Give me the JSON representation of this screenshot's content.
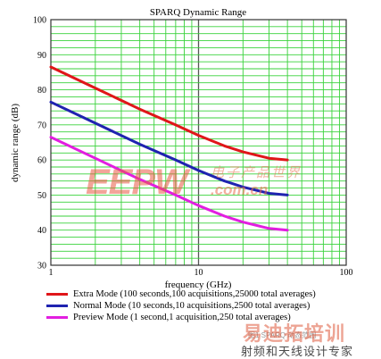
{
  "chart_data": {
    "type": "line",
    "title": "SPARQ Dynamic Range",
    "xlabel": "frequency (GHz)",
    "ylabel": "dynamic range (dB)",
    "xscale": "log",
    "xlim": [
      1,
      100
    ],
    "ylim": [
      30,
      100
    ],
    "grid": true,
    "legend_position": "bottom",
    "x_ticks": [
      {
        "value": 1,
        "label": "1"
      },
      {
        "value": 10,
        "label": "10"
      },
      {
        "value": 100,
        "label": "100"
      }
    ],
    "y_ticks": [
      30,
      40,
      50,
      60,
      70,
      80,
      90,
      100
    ],
    "series": [
      {
        "name": "Extra Mode (100 seconds,100 acquisitions,25000 total averages)",
        "color": "#e0161a",
        "x": [
          1,
          2,
          4,
          7,
          10,
          15,
          20,
          30,
          40
        ],
        "y": [
          86.5,
          80.5,
          74.5,
          70,
          67,
          64,
          62.3,
          60.5,
          60
        ]
      },
      {
        "name": "Normal Mode (10 seconds,10 acquisitions,2500 total averages)",
        "color": "#1f23b0",
        "x": [
          1,
          2,
          4,
          7,
          10,
          15,
          20,
          30,
          40
        ],
        "y": [
          76.5,
          70.5,
          64.5,
          60,
          57,
          54,
          52.3,
          50.5,
          50
        ]
      },
      {
        "name": "Preview Mode (1 second,1 acquisition,250 total averages)",
        "color": "#e21ee0",
        "x": [
          1,
          2,
          4,
          7,
          10,
          15,
          20,
          30,
          40
        ],
        "y": [
          66.5,
          60.5,
          54.5,
          50,
          47,
          44,
          42.3,
          40.5,
          40
        ]
      }
    ]
  },
  "watermark": {
    "brand": "EEPW",
    "brand_cn": "电子产品世界",
    "domain": ".com.cn",
    "course": "易迪拓培训",
    "expert": "射频和天线设计专家",
    "caption": "图1  SPARQ 动态范围"
  }
}
